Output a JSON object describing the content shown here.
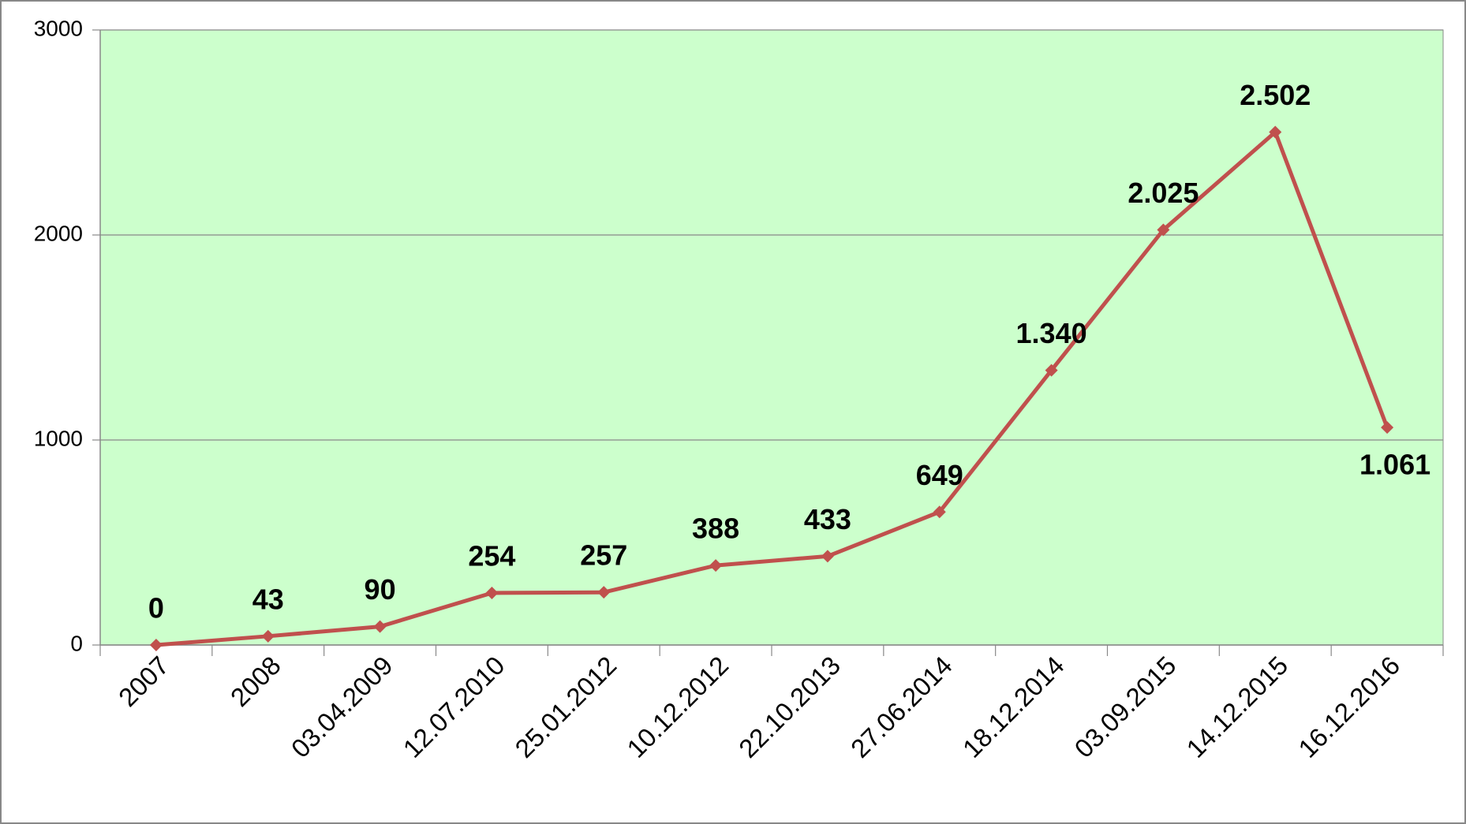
{
  "chart_data": {
    "type": "line",
    "categories": [
      "2007",
      "2008",
      "03.04.2009",
      "12.07.2010",
      "25.01.2012",
      "10.12.2012",
      "22.10.2013",
      "27.06.2014",
      "18.12.2014",
      "03.09.2015",
      "14.12.2015",
      "16.12.2016"
    ],
    "series": [
      {
        "name": null,
        "color": "#c0504d",
        "values": [
          0,
          43,
          90,
          254,
          257,
          388,
          433,
          649,
          1340,
          2025,
          2502,
          1061
        ],
        "value_labels": [
          "0",
          "43",
          "90",
          "254",
          "257",
          "388",
          "433",
          "649",
          "1.340",
          "2.025",
          "2.502",
          "1.061"
        ]
      }
    ],
    "ylim": [
      0,
      3000
    ],
    "yticks": [
      0,
      1000,
      2000,
      3000
    ],
    "grid": true,
    "plot_background": "#ccffcc"
  }
}
